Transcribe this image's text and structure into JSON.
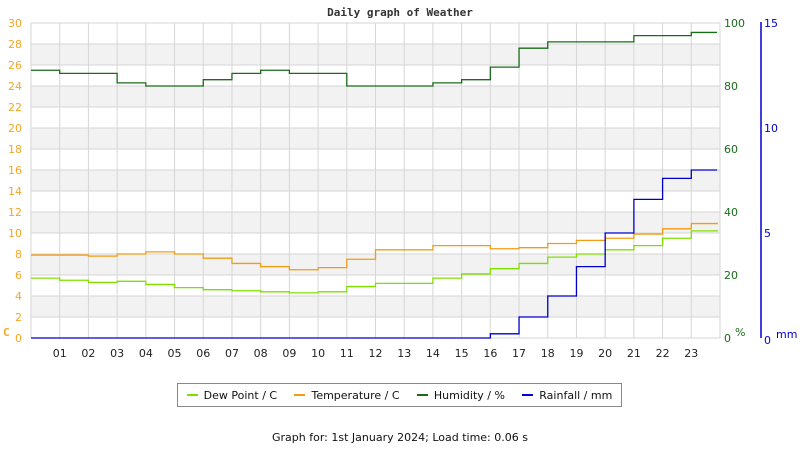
{
  "chart_data": {
    "type": "line",
    "title": "Daily graph of Weather",
    "xlabel": "",
    "x_ticks": [
      "01",
      "02",
      "03",
      "04",
      "05",
      "06",
      "07",
      "08",
      "09",
      "10",
      "11",
      "12",
      "13",
      "14",
      "15",
      "16",
      "17",
      "18",
      "19",
      "20",
      "21",
      "22",
      "23"
    ],
    "axes": {
      "left": {
        "label": "C",
        "ticks": [
          0,
          2,
          4,
          6,
          8,
          10,
          12,
          14,
          16,
          18,
          20,
          22,
          24,
          26,
          28,
          30
        ],
        "range": [
          0,
          30
        ],
        "color": "#f5a623"
      },
      "right_humidity": {
        "label": "%",
        "ticks": [
          0,
          20,
          40,
          60,
          80,
          100
        ],
        "range": [
          0,
          100
        ],
        "color": "#1a6b1a"
      },
      "right_rainfall": {
        "label": "mm",
        "ticks": [
          0,
          5,
          10,
          15
        ],
        "range": [
          0,
          15
        ],
        "color": "#0000cc"
      }
    },
    "x_hours": [
      0,
      1,
      2,
      3,
      4,
      5,
      6,
      7,
      8,
      9,
      10,
      11,
      12,
      13,
      14,
      15,
      16,
      17,
      18,
      19,
      20,
      21,
      22,
      23,
      24
    ],
    "series": [
      {
        "name": "Dew Point / C",
        "color": "#7fe000",
        "axis": "left",
        "values": [
          5.7,
          5.5,
          5.3,
          5.4,
          5.1,
          4.8,
          4.6,
          4.5,
          4.4,
          4.3,
          4.4,
          4.9,
          5.2,
          5.2,
          5.7,
          6.1,
          6.6,
          7.1,
          7.7,
          8.0,
          8.4,
          8.8,
          9.5,
          10.2,
          10.3
        ]
      },
      {
        "name": "Temperature / C",
        "color": "#f39c12",
        "axis": "left",
        "values": [
          7.9,
          7.9,
          7.8,
          8.0,
          8.2,
          8.0,
          7.6,
          7.1,
          6.8,
          6.5,
          6.7,
          7.5,
          8.4,
          8.4,
          8.8,
          8.8,
          8.5,
          8.6,
          9.0,
          9.3,
          9.5,
          9.9,
          10.4,
          10.9,
          11.0
        ]
      },
      {
        "name": "Humidity / %",
        "color": "#1a6b1a",
        "axis": "right_humidity",
        "values": [
          85,
          84,
          84,
          81,
          80,
          80,
          82,
          84,
          85,
          84,
          84,
          80,
          80,
          80,
          81,
          82,
          86,
          92,
          94,
          94,
          94,
          96,
          96,
          97,
          97
        ]
      },
      {
        "name": "Rainfall / mm",
        "color": "#0000cc",
        "axis": "right_rainfall",
        "values": [
          0,
          0,
          0,
          0,
          0,
          0,
          0,
          0,
          0,
          0,
          0,
          0,
          0,
          0,
          0,
          0,
          0.2,
          1.0,
          2.0,
          3.4,
          5.0,
          6.6,
          7.6,
          8.0,
          8.0
        ]
      }
    ],
    "grid": true,
    "legend_position": "bottom"
  },
  "legend": {
    "items": [
      {
        "label": "Dew Point / C",
        "color": "#7fe000"
      },
      {
        "label": "Temperature / C",
        "color": "#f39c12"
      },
      {
        "label": "Humidity / %",
        "color": "#1a6b1a"
      },
      {
        "label": "Rainfall / mm",
        "color": "#0000cc"
      }
    ]
  },
  "footer": {
    "text": "Graph for: 1st January 2024; Load time: 0.06 s"
  }
}
